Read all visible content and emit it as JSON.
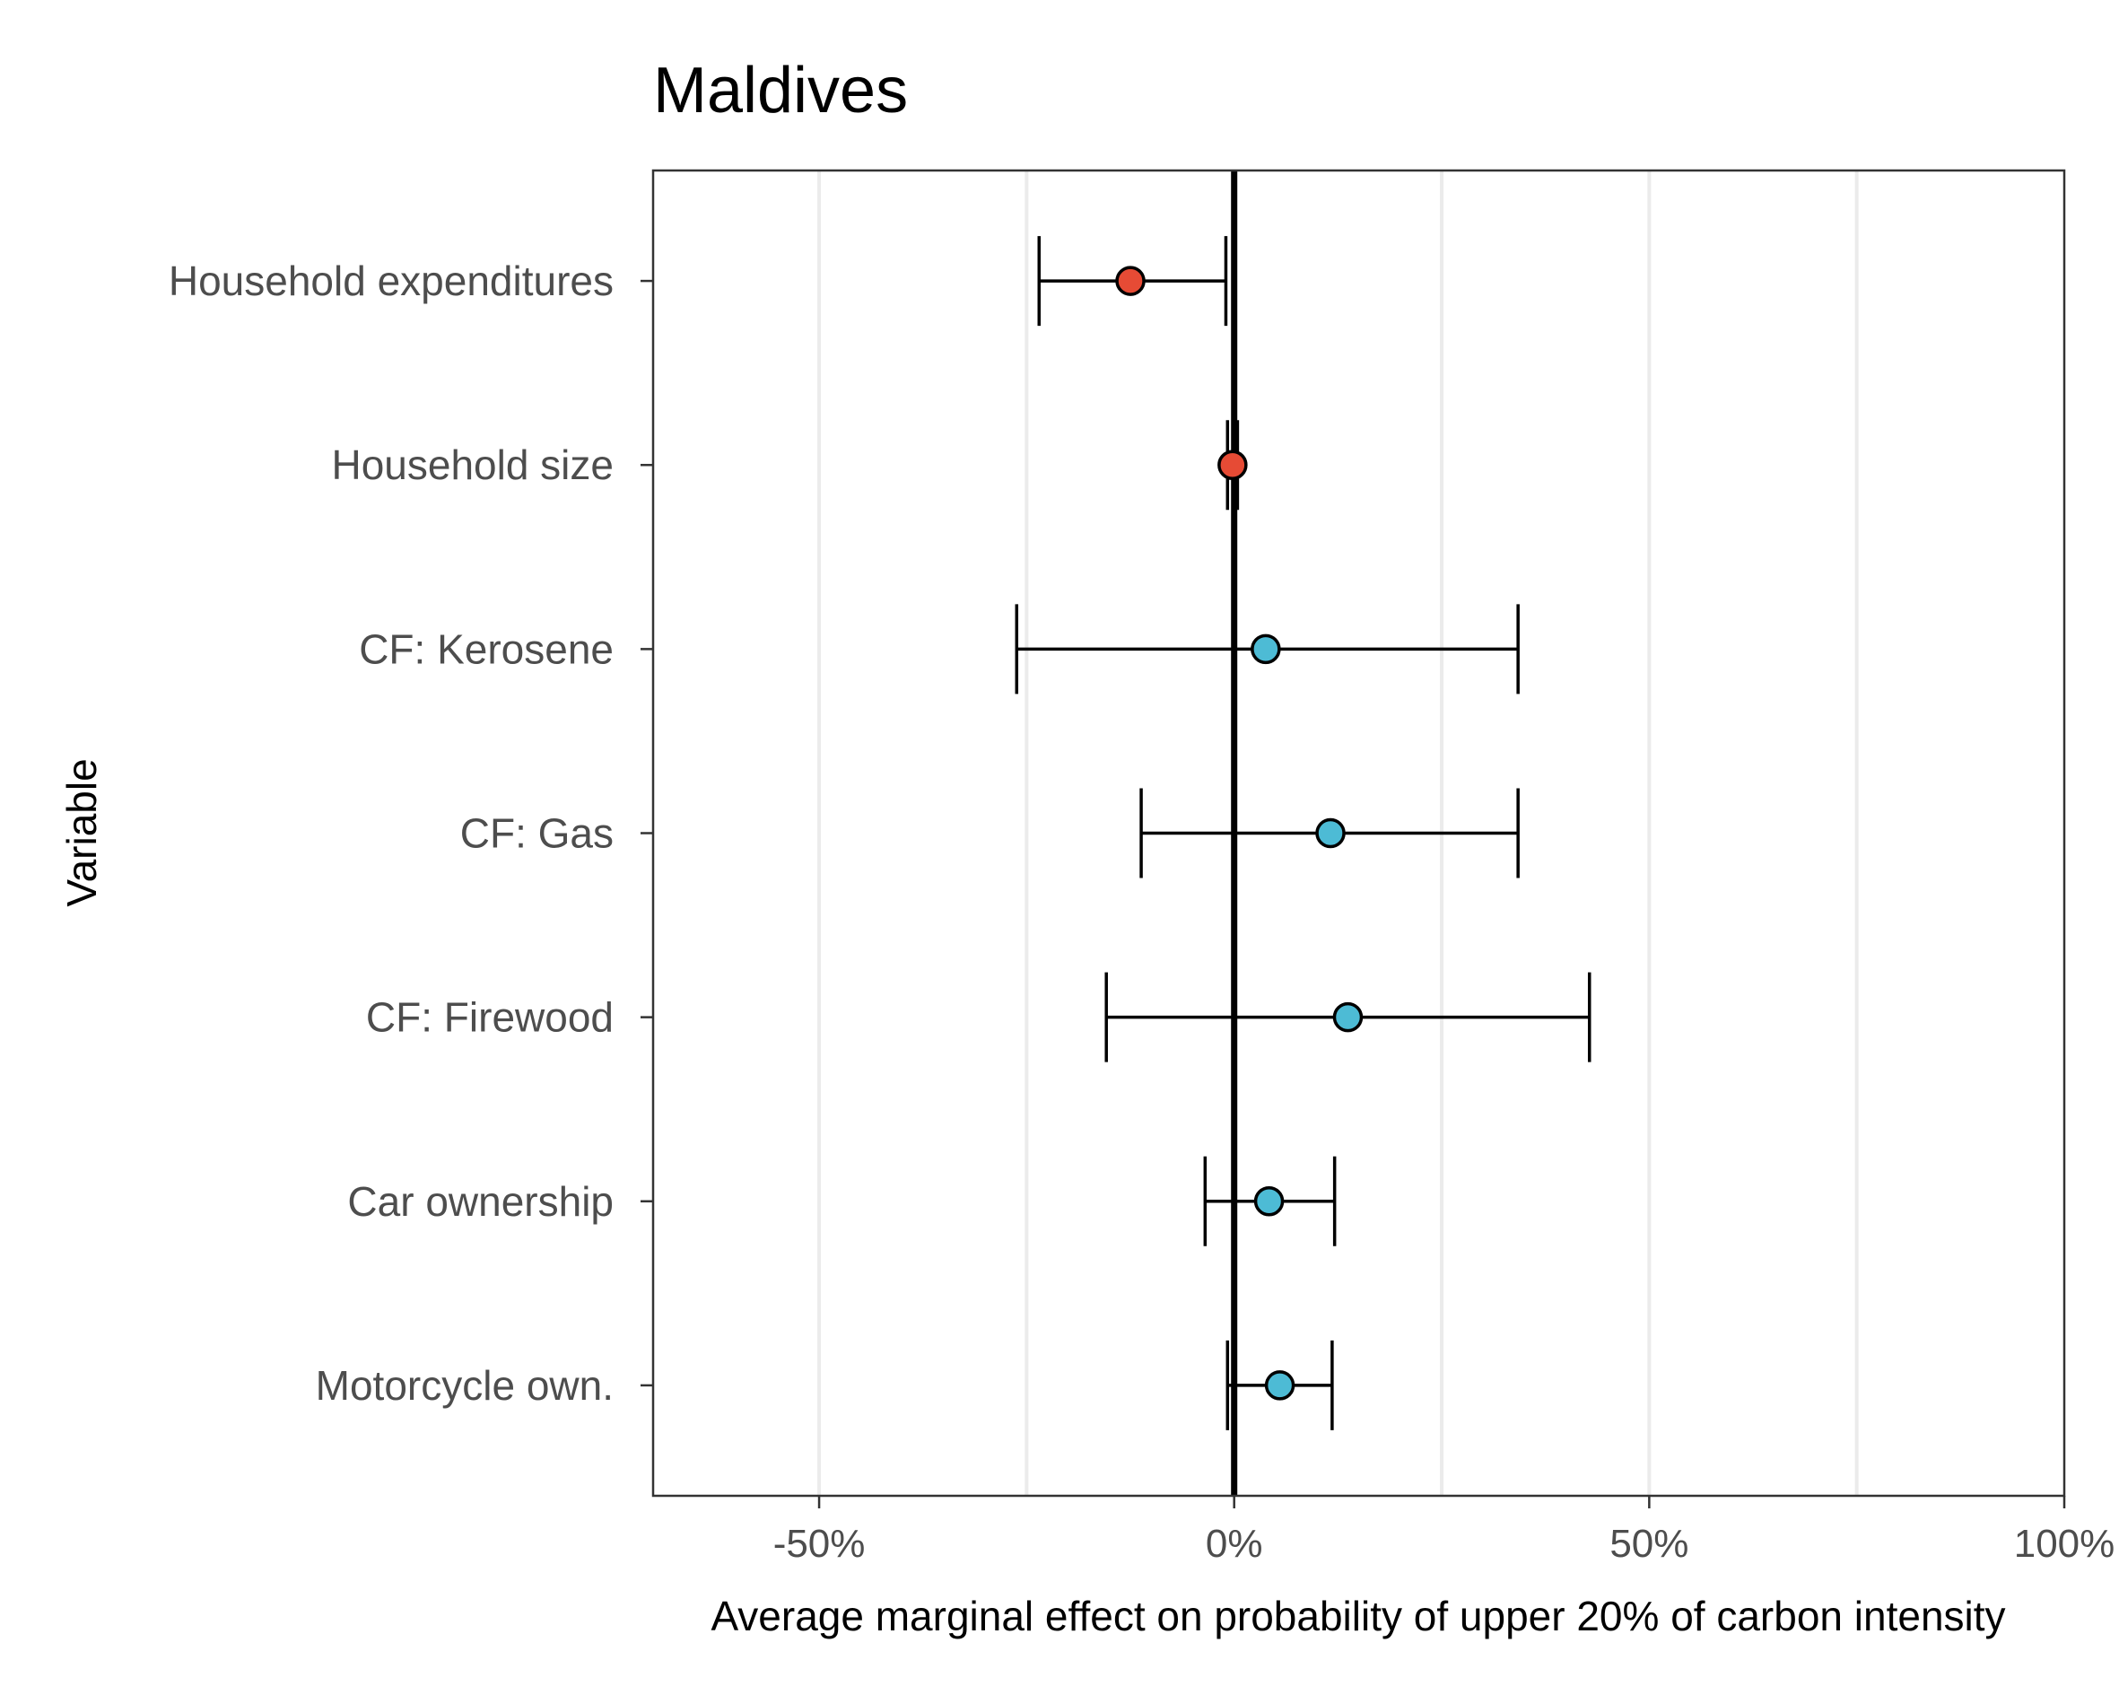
{
  "chart_data": {
    "type": "scatter",
    "title": "Maldives",
    "xlabel": "Average marginal effect on probability of upper 20% of carbon intensity",
    "ylabel": "Variable",
    "xlim": [
      -70,
      100
    ],
    "x_ticks": [
      -50,
      0,
      50,
      100
    ],
    "x_tick_labels": [
      "-50%",
      "0%",
      "50%",
      "100%"
    ],
    "x_minor_gridlines": [
      -25,
      25,
      75
    ],
    "grid": true,
    "reference_line": 0,
    "points": [
      {
        "label": "Household expenditures",
        "estimate": -12.5,
        "lower": -23.5,
        "upper": -1.0,
        "color": "#e64b35"
      },
      {
        "label": "Household size",
        "estimate": -0.2,
        "lower": -0.8,
        "upper": 0.4,
        "color": "#e64b35"
      },
      {
        "label": "CF: Kerosene",
        "estimate": 3.8,
        "lower": -26.2,
        "upper": 34.2,
        "color": "#4dbbd5"
      },
      {
        "label": "CF: Gas",
        "estimate": 11.6,
        "lower": -11.2,
        "upper": 34.2,
        "color": "#4dbbd5"
      },
      {
        "label": "CF: Firewood",
        "estimate": 13.7,
        "lower": -15.4,
        "upper": 42.8,
        "color": "#4dbbd5"
      },
      {
        "label": "Car ownership",
        "estimate": 4.2,
        "lower": -3.5,
        "upper": 12.1,
        "color": "#4dbbd5"
      },
      {
        "label": "Motorcycle own.",
        "estimate": 5.5,
        "lower": -0.8,
        "upper": 11.8,
        "color": "#4dbbd5"
      }
    ]
  }
}
